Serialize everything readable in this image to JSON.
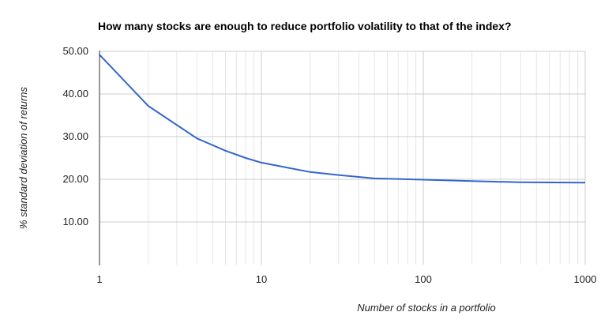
{
  "chart_data": {
    "type": "line",
    "title": "How many stocks are enough to reduce portfolio volatility to that of the index?",
    "xlabel": "Number of stocks in a portfolio",
    "ylabel": "% standard deviation of returns",
    "x_scale": "log",
    "xlim": [
      1,
      1000
    ],
    "ylim": [
      0,
      50
    ],
    "x_ticks": [
      1,
      10,
      100,
      1000
    ],
    "x_tick_labels": [
      "1",
      "10",
      "100",
      "1000"
    ],
    "y_ticks": [
      10,
      20,
      30,
      40,
      50
    ],
    "y_tick_labels": [
      "10.00",
      "20.00",
      "30.00",
      "40.00",
      "50.00"
    ],
    "grid": true,
    "line_color": "#3366cc",
    "series": [
      {
        "x": [
          1,
          2,
          4,
          6,
          8,
          10,
          20,
          30,
          50,
          100,
          200,
          400,
          1000
        ],
        "values": [
          49.2,
          37.2,
          29.6,
          26.7,
          25.0,
          23.9,
          21.7,
          21.0,
          20.2,
          19.9,
          19.6,
          19.3,
          19.2
        ]
      }
    ]
  }
}
